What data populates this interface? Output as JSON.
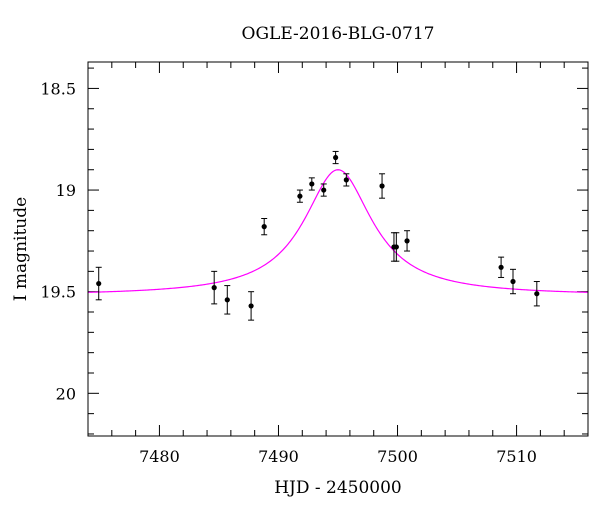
{
  "chart_data": {
    "type": "scatter",
    "title": "OGLE-2016-BLG-0717",
    "xlabel": "HJD - 2450000",
    "ylabel": "I magnitude",
    "xlim": [
      7474,
      7516
    ],
    "ylim": [
      20.21,
      18.37
    ],
    "y_inverted": true,
    "xticks": [
      7480,
      7490,
      7500,
      7510
    ],
    "yticks": [
      18.5,
      19,
      19.5,
      20
    ],
    "ytick_labels": [
      "18.5",
      "19",
      "19.5",
      "20"
    ],
    "xminor_step": 2,
    "yminor_step": 0.1,
    "series": [
      {
        "kind": "points_with_errorbars",
        "color": "#000000",
        "points": [
          {
            "x": 7474.9,
            "y": 19.46,
            "err": 0.08
          },
          {
            "x": 7484.6,
            "y": 19.48,
            "err": 0.08
          },
          {
            "x": 7485.7,
            "y": 19.54,
            "err": 0.07
          },
          {
            "x": 7487.7,
            "y": 19.57,
            "err": 0.07
          },
          {
            "x": 7488.8,
            "y": 19.18,
            "err": 0.04
          },
          {
            "x": 7491.8,
            "y": 19.03,
            "err": 0.03
          },
          {
            "x": 7492.8,
            "y": 18.97,
            "err": 0.03
          },
          {
            "x": 7493.8,
            "y": 19.0,
            "err": 0.03
          },
          {
            "x": 7494.8,
            "y": 18.84,
            "err": 0.03
          },
          {
            "x": 7495.7,
            "y": 18.95,
            "err": 0.03
          },
          {
            "x": 7498.7,
            "y": 18.98,
            "err": 0.06
          },
          {
            "x": 7499.7,
            "y": 19.28,
            "err": 0.07
          },
          {
            "x": 7499.9,
            "y": 19.28,
            "err": 0.07
          },
          {
            "x": 7500.8,
            "y": 19.25,
            "err": 0.05
          },
          {
            "x": 7508.7,
            "y": 19.38,
            "err": 0.05
          },
          {
            "x": 7509.7,
            "y": 19.45,
            "err": 0.06
          },
          {
            "x": 7511.7,
            "y": 19.51,
            "err": 0.06
          }
        ]
      },
      {
        "kind": "model_curve",
        "color": "#ff00ff",
        "t0": 7495.0,
        "baseline_mag": 19.52,
        "peak_mag": 18.9,
        "half_width_days": 3.5
      }
    ]
  }
}
